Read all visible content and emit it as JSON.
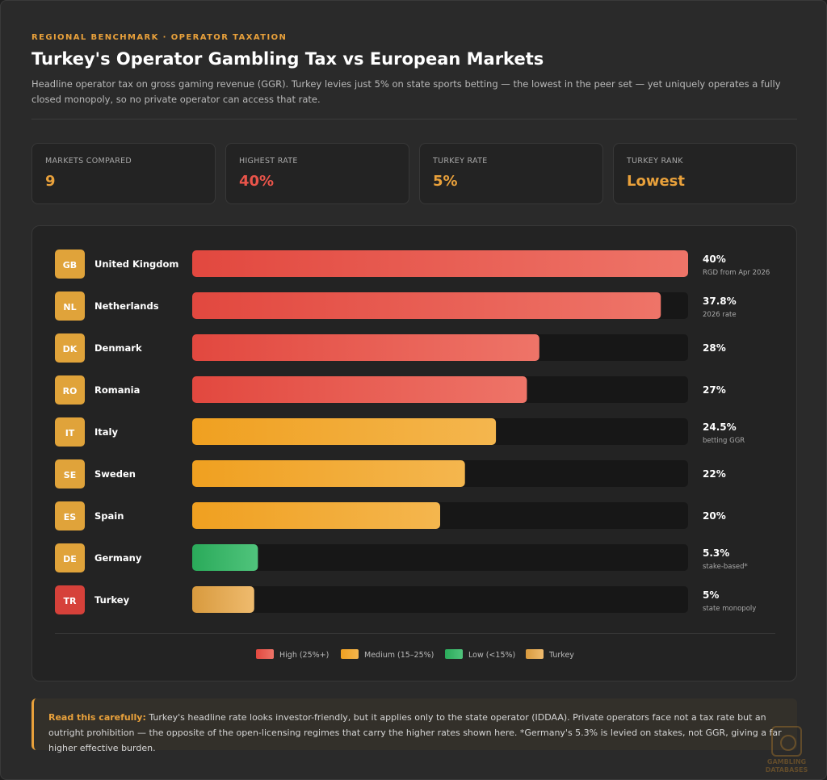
{
  "header": {
    "eyebrow": "REGIONAL BENCHMARK · OPERATOR TAXATION",
    "title": "Turkey's Operator Gambling Tax vs European Markets",
    "subtitle": "Headline operator tax on gross gaming revenue (GGR). Turkey levies just 5% on state sports betting — the lowest in the peer set — yet uniquely operates a fully closed monopoly, so no private operator can access that rate."
  },
  "stats": [
    {
      "label": "MARKETS COMPARED",
      "value": "9",
      "color": "#e9a13b"
    },
    {
      "label": "HIGHEST RATE",
      "value": "40%",
      "color": "#e8544a"
    },
    {
      "label": "TURKEY RATE",
      "value": "5%",
      "color": "#e9a13b"
    },
    {
      "label": "TURKEY RANK",
      "value": "Lowest",
      "color": "#e9a13b"
    }
  ],
  "chart_data": {
    "type": "bar",
    "orientation": "horizontal",
    "xlim": [
      0,
      40
    ],
    "categories": [
      "United Kingdom",
      "Netherlands",
      "Denmark",
      "Romania",
      "Italy",
      "Sweden",
      "Spain",
      "Germany",
      "Turkey"
    ],
    "codes": [
      "GB",
      "NL",
      "DK",
      "RO",
      "IT",
      "SE",
      "ES",
      "DE",
      "TR"
    ],
    "values": [
      40,
      37.8,
      28,
      27,
      24.5,
      22,
      20,
      5.3,
      5
    ],
    "value_labels": [
      "40%",
      "37.8%",
      "28%",
      "27%",
      "24.5%",
      "22%",
      "20%",
      "5.3%",
      "5%"
    ],
    "notes": [
      "RGD from Apr 2026",
      "2026 rate",
      "",
      "",
      "betting GGR",
      "",
      "",
      "stake-based*",
      "state monopoly"
    ],
    "groups": [
      "high",
      "high",
      "high",
      "high",
      "medium",
      "medium",
      "medium",
      "low",
      "turkey"
    ],
    "legend": [
      {
        "key": "high",
        "label": "High (25%+)"
      },
      {
        "key": "medium",
        "label": "Medium (15–25%)"
      },
      {
        "key": "low",
        "label": "Low (<15%)"
      },
      {
        "key": "turkey",
        "label": "Turkey"
      }
    ],
    "colors": {
      "high": [
        "#e2483f",
        "#ee7468"
      ],
      "medium": [
        "#f0a020",
        "#f4b64e"
      ],
      "low": [
        "#2aaa5a",
        "#50c47c"
      ],
      "turkey": [
        "#d89a3e",
        "#efbb6e"
      ]
    },
    "badge_colors": {
      "default": "#e0a33a",
      "turkey": "#d6413a"
    },
    "legend_placement": "bottom"
  },
  "note": {
    "lead": "Read this carefully:",
    "text": " Turkey's headline rate looks investor-friendly, but it applies only to the state operator (IDDAA). Private operators face not a tax rate but an outright prohibition — the opposite of the open-licensing regimes that carry the higher rates shown here. *Germany's 5.3% is levied on stakes, not GGR, giving a far higher effective burden."
  },
  "logo": {
    "line1": "GAMBLING",
    "line2": "DATABASES"
  }
}
